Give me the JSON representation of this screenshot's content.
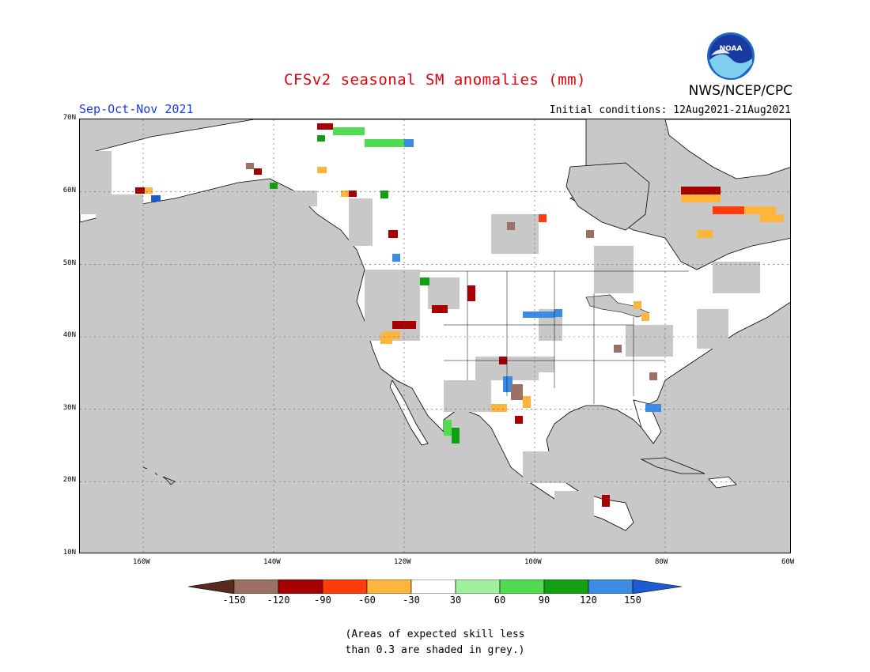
{
  "title": "CFSv2 seasonal SM anomalies (mm)",
  "season": "Sep-Oct-Nov 2021",
  "initial_conditions": "Initial conditions: 12Aug2021-21Aug2021",
  "agency": "NWS/NCEP/CPC",
  "logo_text": "NOAA",
  "lat_labels": [
    "70N",
    "60N",
    "50N",
    "40N",
    "30N",
    "20N",
    "10N"
  ],
  "lon_labels": [
    "160W",
    "140W",
    "120W",
    "100W",
    "80W",
    "60W"
  ],
  "colorbar": {
    "labels": [
      "-150",
      "-120",
      "-90",
      "-60",
      "-30",
      "30",
      "60",
      "90",
      "120",
      "150"
    ],
    "colors": [
      "#5a2a1e",
      "#9c7064",
      "#a80000",
      "#ff3c0a",
      "#ffb43c",
      "#ffffff",
      "#a0f0a0",
      "#50dc50",
      "#10a010",
      "#3c8ce6",
      "#1e5ad2"
    ]
  },
  "note_line1": "(Areas of expected skill less",
  "note_line2": "than 0.3 are shaded in grey.)",
  "colors": {
    "ocean": "#c8c8c8",
    "land_low_skill": "#c8c8c8",
    "land_neutral": "#ffffff",
    "title": "#e0000a",
    "season": "#1a3ae0"
  }
}
